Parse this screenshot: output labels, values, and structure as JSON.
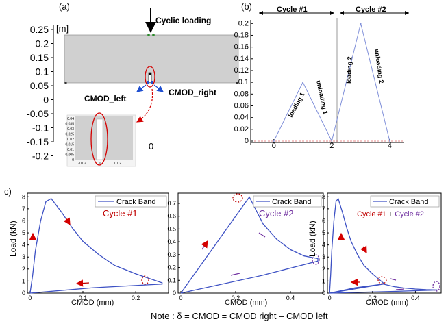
{
  "panel_labels": {
    "a": "(a)",
    "b": "(b)",
    "c": "c)"
  },
  "panel_a": {
    "unit": "[m]",
    "y_ticks": [
      "0.25",
      "0.2",
      "0.15",
      "0.1",
      "0.05",
      "0",
      "-0.05",
      "-0.1",
      "-0.15",
      "-0.2"
    ],
    "x_tick": "0",
    "load_label": "Cyclic loading",
    "cmod_left": "CMOD_left",
    "cmod_right": "CMOD_right",
    "inset": {
      "y_ticks": [
        "0.04",
        "0.035",
        "0.03",
        "0.025",
        "0.02",
        "0.015",
        "0.01",
        "0.005",
        "0"
      ],
      "x_ticks": [
        "-0.02",
        "0",
        "0.02"
      ]
    },
    "colors": {
      "specimen": "#d0d0d0",
      "highlight": "#d40000",
      "cmod_arrow": "#1f4fd1"
    }
  },
  "panel_b": {
    "cycle1": "Cycle #1",
    "cycle2": "Cycle #2",
    "phase_labels": [
      "loading 1",
      "unloading 1",
      "loading 2",
      "unloading 2"
    ]
  },
  "panel_c": {
    "xlabel": "CMOD (mm)",
    "ylabel": "Load (kN)",
    "legend": "Crack Band",
    "cycle_label_1": "Cycle #1",
    "cycle_label_2": "Cycle #2",
    "cycle_label_3a": "Cycle #1",
    "cycle_label_3plus": "+",
    "cycle_label_3b": "Cycle #2",
    "colors": {
      "curve": "#3d51c4",
      "cycle1": "#c00000",
      "cycle2": "#7030a0"
    }
  },
  "note": "Note : δ = CMOD = CMOD right – CMOD left",
  "chart_data": [
    {
      "type": "line",
      "name": "loading history",
      "x": [
        0,
        1,
        2,
        3,
        4
      ],
      "values": [
        0,
        0.1,
        0,
        0.2,
        0
      ],
      "xticks": [
        "0",
        "2",
        "4"
      ],
      "yticks": [
        "0",
        "0.02",
        "0.04",
        "0.06",
        "0.08",
        "0.1",
        "0.12",
        "0.14",
        "0.16",
        "0.18",
        "0.2"
      ],
      "xlim": [
        -0.8,
        4.5
      ],
      "ylim": [
        0,
        0.205
      ]
    },
    {
      "type": "line",
      "name": "Cycle #1",
      "x": [
        0,
        0.005,
        0.01,
        0.02,
        0.03,
        0.04,
        0.06,
        0.08,
        0.1,
        0.13,
        0.16,
        0.2,
        0.25,
        0.25,
        0.12,
        0
      ],
      "values": [
        0,
        1.5,
        3.5,
        6.0,
        7.6,
        7.85,
        6.7,
        5.4,
        4.3,
        3.2,
        2.3,
        1.6,
        0.85,
        0.75,
        0.45,
        0
      ],
      "xticks": [
        "0",
        "0.1",
        "0.2"
      ],
      "yticks": [
        "0",
        "1",
        "2",
        "3",
        "4",
        "5",
        "6",
        "7",
        "8"
      ],
      "xlim": [
        -0.005,
        0.262
      ],
      "ylim": [
        0,
        8.3
      ]
    },
    {
      "type": "line",
      "name": "Cycle #2",
      "x": [
        0,
        0.25,
        0.3,
        0.35,
        0.4,
        0.45,
        0.5,
        0.5,
        0.3,
        0
      ],
      "values": [
        0,
        0.75,
        0.54,
        0.42,
        0.34,
        0.29,
        0.27,
        0.25,
        0.14,
        0
      ],
      "xticks": [
        "0",
        "0.2",
        "0.4"
      ],
      "yticks": [
        "0",
        "0.1",
        "0.2",
        "0.3",
        "0.4",
        "0.5",
        "0.6",
        "0.7"
      ],
      "xlim": [
        -0.01,
        0.52
      ],
      "ylim": [
        0,
        0.78
      ]
    },
    {
      "type": "line",
      "name": "Cycle #1 + Cycle #2",
      "x": [
        0,
        0.005,
        0.01,
        0.02,
        0.03,
        0.04,
        0.06,
        0.08,
        0.1,
        0.13,
        0.16,
        0.2,
        0.25,
        0.25,
        0.12,
        0,
        0.25,
        0.3,
        0.35,
        0.4,
        0.45,
        0.5,
        0.5,
        0.3,
        0
      ],
      "values": [
        0,
        1.5,
        3.5,
        6.0,
        7.6,
        7.85,
        6.7,
        5.4,
        4.3,
        3.2,
        2.3,
        1.6,
        0.85,
        0.75,
        0.45,
        0,
        0.75,
        0.54,
        0.42,
        0.34,
        0.29,
        0.27,
        0.25,
        0.14,
        0
      ],
      "xticks": [
        "0",
        "0.2",
        "0.4"
      ],
      "yticks": [
        "0",
        "1",
        "2",
        "3",
        "4",
        "5",
        "6",
        "7",
        "8"
      ],
      "xlim": [
        -0.01,
        0.52
      ],
      "ylim": [
        0,
        8.3
      ]
    }
  ]
}
